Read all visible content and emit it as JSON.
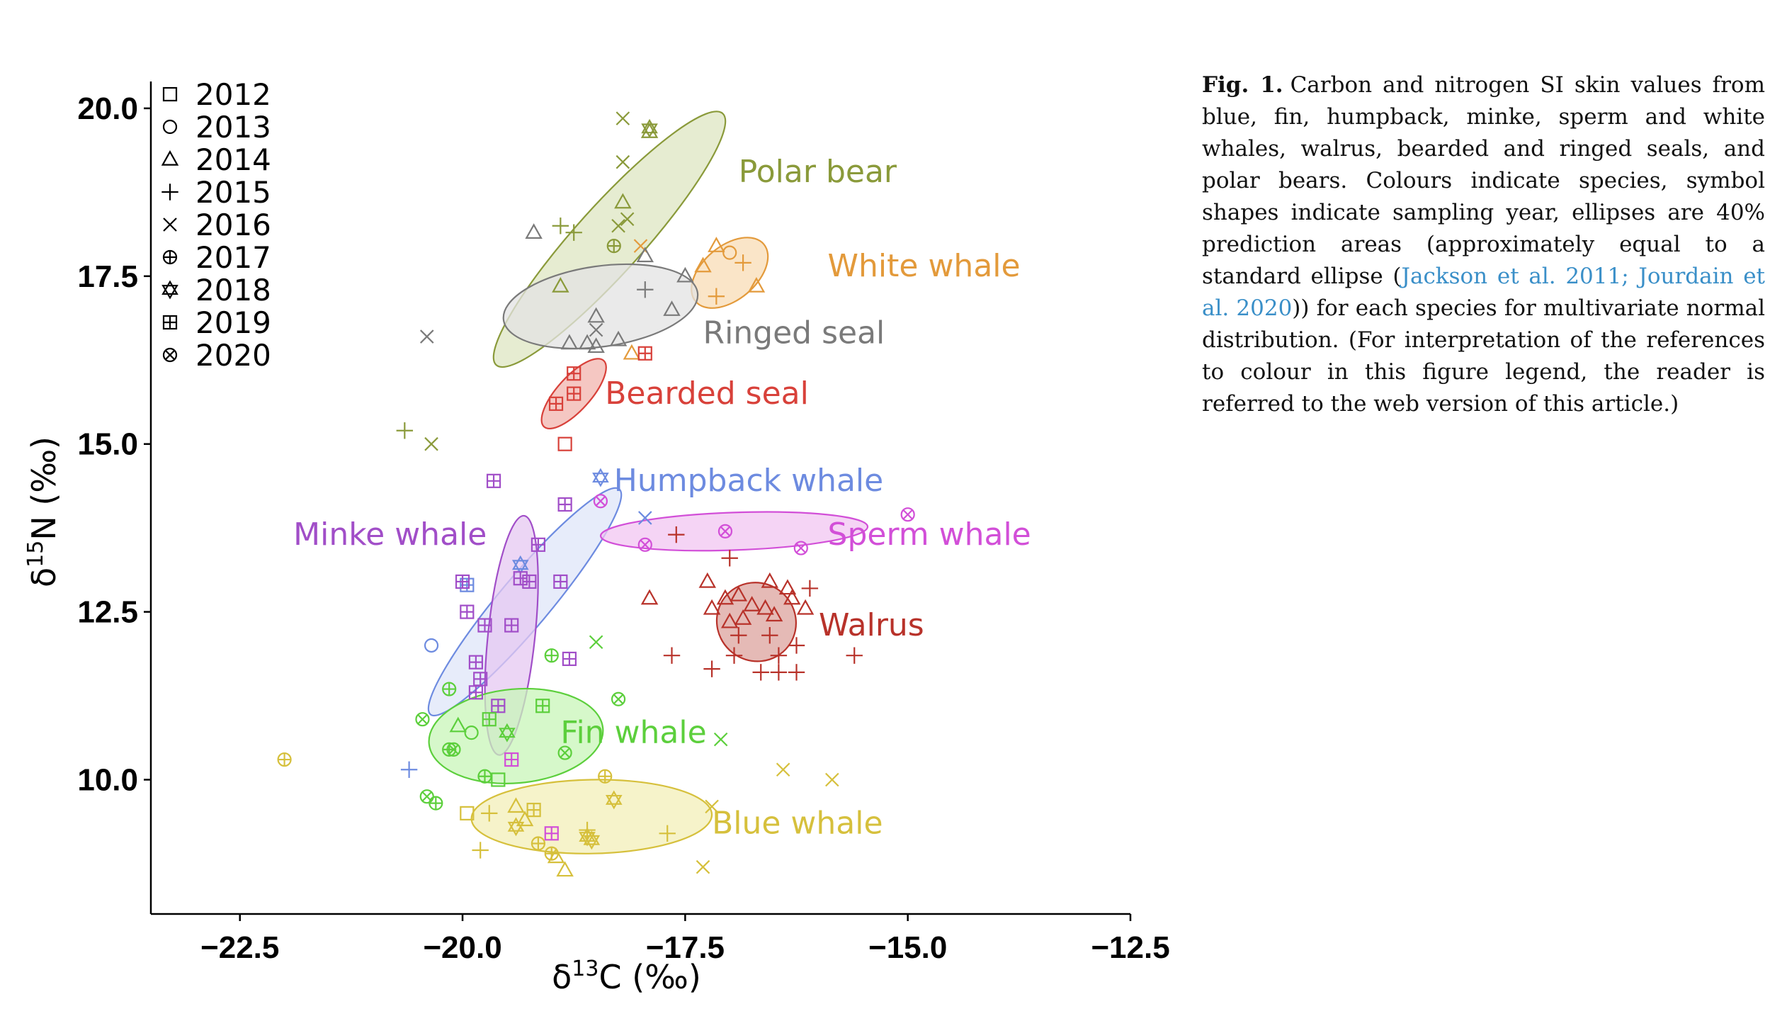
{
  "chart_data": {
    "type": "scatter",
    "xlabel": "δ13C (‰)",
    "ylabel": "δ15N (‰)",
    "xlim": [
      -23.5,
      -12.5
    ],
    "ylim": [
      8.0,
      20.4
    ],
    "xticks": [
      -22.5,
      -20.0,
      -17.5,
      -15.0,
      -12.5
    ],
    "xtick_labels": [
      "−22.5",
      "−20.0",
      "−17.5",
      "−15.0",
      "−12.5"
    ],
    "yticks": [
      10.0,
      12.5,
      15.0,
      17.5,
      20.0
    ],
    "ytick_labels": [
      "10.0",
      "12.5",
      "15.0",
      "17.5",
      "20.0"
    ],
    "grid": false,
    "legend_position": "top-left",
    "legend": [
      {
        "year": "2012",
        "marker": "square"
      },
      {
        "year": "2013",
        "marker": "circle"
      },
      {
        "year": "2014",
        "marker": "triangle"
      },
      {
        "year": "2015",
        "marker": "plus"
      },
      {
        "year": "2016",
        "marker": "cross"
      },
      {
        "year": "2017",
        "marker": "circle-plus"
      },
      {
        "year": "2018",
        "marker": "star-of-david"
      },
      {
        "year": "2019",
        "marker": "square-plus"
      },
      {
        "year": "2020",
        "marker": "circle-cross"
      }
    ],
    "series": [
      {
        "name": "Polar bear",
        "color": "#8a9a3a",
        "fill": "#dde6c2",
        "ellipse": {
          "cx": -18.35,
          "cy": 18.05,
          "rx": 1.9,
          "ry": 0.5,
          "angle_deg": 48
        },
        "label_pos": [
          -16.9,
          18.9
        ],
        "points": [
          {
            "x": -18.2,
            "y": 19.85,
            "m": "2016"
          },
          {
            "x": -17.9,
            "y": 19.7,
            "m": "2018"
          },
          {
            "x": -17.9,
            "y": 19.65,
            "m": "2014"
          },
          {
            "x": -18.2,
            "y": 19.2,
            "m": "2016"
          },
          {
            "x": -18.2,
            "y": 18.6,
            "m": "2014"
          },
          {
            "x": -18.15,
            "y": 18.35,
            "m": "2016"
          },
          {
            "x": -18.25,
            "y": 18.25,
            "m": "2016"
          },
          {
            "x": -18.9,
            "y": 18.25,
            "m": "2015"
          },
          {
            "x": -18.75,
            "y": 18.15,
            "m": "2015"
          },
          {
            "x": -18.3,
            "y": 17.95,
            "m": "2017"
          },
          {
            "x": -18.9,
            "y": 17.35,
            "m": "2014"
          },
          {
            "x": -20.65,
            "y": 15.2,
            "m": "2015"
          },
          {
            "x": -20.35,
            "y": 15.0,
            "m": "2016"
          }
        ]
      },
      {
        "name": "White whale",
        "color": "#e39a3b",
        "fill": "#f8dcb6",
        "ellipse": {
          "cx": -17.0,
          "cy": 17.55,
          "rx": 0.5,
          "ry": 0.4,
          "angle_deg": 40
        },
        "label_pos": [
          -15.9,
          17.5
        ],
        "points": [
          {
            "x": -17.15,
            "y": 17.95,
            "m": "2014"
          },
          {
            "x": -17.0,
            "y": 17.85,
            "m": "2013"
          },
          {
            "x": -17.3,
            "y": 17.65,
            "m": "2014"
          },
          {
            "x": -16.85,
            "y": 17.7,
            "m": "2015"
          },
          {
            "x": -16.7,
            "y": 17.35,
            "m": "2014"
          },
          {
            "x": -17.15,
            "y": 17.2,
            "m": "2015"
          },
          {
            "x": -18.0,
            "y": 17.95,
            "m": "2016"
          },
          {
            "x": -18.1,
            "y": 16.35,
            "m": "2014"
          }
        ]
      },
      {
        "name": "Ringed seal",
        "color": "#7a7a7a",
        "fill": "#e3e3e3",
        "ellipse": {
          "cx": -18.45,
          "cy": 17.05,
          "rx": 1.1,
          "ry": 0.6,
          "angle_deg": 8
        },
        "label_pos": [
          -17.3,
          16.5
        ],
        "points": [
          {
            "x": -19.2,
            "y": 18.15,
            "m": "2014"
          },
          {
            "x": -17.95,
            "y": 17.8,
            "m": "2014"
          },
          {
            "x": -17.5,
            "y": 17.5,
            "m": "2014"
          },
          {
            "x": -17.95,
            "y": 17.3,
            "m": "2015"
          },
          {
            "x": -17.65,
            "y": 17.0,
            "m": "2014"
          },
          {
            "x": -18.5,
            "y": 16.9,
            "m": "2014"
          },
          {
            "x": -18.5,
            "y": 16.7,
            "m": "2016"
          },
          {
            "x": -18.6,
            "y": 16.5,
            "m": "2014"
          },
          {
            "x": -18.8,
            "y": 16.5,
            "m": "2014"
          },
          {
            "x": -18.25,
            "y": 16.55,
            "m": "2014"
          },
          {
            "x": -18.5,
            "y": 16.45,
            "m": "2014"
          },
          {
            "x": -20.4,
            "y": 16.6,
            "m": "2016"
          }
        ]
      },
      {
        "name": "Bearded seal",
        "color": "#d8413a",
        "fill": "#f2b4ad",
        "ellipse": {
          "cx": -18.75,
          "cy": 15.75,
          "rx": 0.5,
          "ry": 0.25,
          "angle_deg": 48
        },
        "label_pos": [
          -18.4,
          15.6
        ],
        "points": [
          {
            "x": -17.95,
            "y": 16.35,
            "m": "2019"
          },
          {
            "x": -18.75,
            "y": 16.05,
            "m": "2019"
          },
          {
            "x": -18.75,
            "y": 15.75,
            "m": "2019"
          },
          {
            "x": -18.95,
            "y": 15.6,
            "m": "2019"
          },
          {
            "x": -18.85,
            "y": 15.0,
            "m": "2012"
          }
        ]
      },
      {
        "name": "Humpback whale",
        "color": "#6d8be0",
        "fill": "#dfe6f8",
        "ellipse": {
          "cx": -19.3,
          "cy": 12.65,
          "rx": 1.65,
          "ry": 0.38,
          "angle_deg": 50
        },
        "label_pos": [
          -18.3,
          14.3
        ],
        "points": [
          {
            "x": -18.45,
            "y": 14.5,
            "m": "2018"
          },
          {
            "x": -19.35,
            "y": 13.2,
            "m": "2018"
          },
          {
            "x": -20.35,
            "y": 12.0,
            "m": "2013"
          },
          {
            "x": -17.95,
            "y": 13.9,
            "m": "2016"
          },
          {
            "x": -20.6,
            "y": 10.15,
            "m": "2015"
          },
          {
            "x": -19.95,
            "y": 12.9,
            "m": "2019"
          }
        ]
      },
      {
        "name": "Sperm whale",
        "color": "#d24fd8",
        "fill": "#f1c6f2",
        "ellipse": {
          "cx": -16.95,
          "cy": 13.7,
          "rx": 1.5,
          "ry": 0.28,
          "angle_deg": 2
        },
        "label_pos": [
          -15.9,
          13.5
        ],
        "points": [
          {
            "x": -18.45,
            "y": 14.15,
            "m": "2020"
          },
          {
            "x": -15.0,
            "y": 13.95,
            "m": "2020"
          },
          {
            "x": -17.05,
            "y": 13.7,
            "m": "2020"
          },
          {
            "x": -17.95,
            "y": 13.5,
            "m": "2020"
          },
          {
            "x": -16.2,
            "y": 13.45,
            "m": "2020"
          },
          {
            "x": -19.45,
            "y": 10.3,
            "m": "2019"
          },
          {
            "x": -19.0,
            "y": 9.2,
            "m": "2019"
          }
        ]
      },
      {
        "name": "Minke whale",
        "color": "#a14ec8",
        "fill": "#e6c8f2",
        "ellipse": {
          "cx": -19.45,
          "cy": 12.15,
          "rx": 1.35,
          "ry": 0.35,
          "angle_deg": 84
        },
        "label_pos": [
          -21.9,
          13.5
        ],
        "points": [
          {
            "x": -19.65,
            "y": 14.45,
            "m": "2019"
          },
          {
            "x": -18.85,
            "y": 14.1,
            "m": "2019"
          },
          {
            "x": -19.15,
            "y": 13.5,
            "m": "2019"
          },
          {
            "x": -19.35,
            "y": 13.0,
            "m": "2019"
          },
          {
            "x": -19.25,
            "y": 12.95,
            "m": "2019"
          },
          {
            "x": -18.9,
            "y": 12.95,
            "m": "2019"
          },
          {
            "x": -20.0,
            "y": 12.95,
            "m": "2019"
          },
          {
            "x": -19.95,
            "y": 12.5,
            "m": "2019"
          },
          {
            "x": -19.75,
            "y": 12.3,
            "m": "2019"
          },
          {
            "x": -19.45,
            "y": 12.3,
            "m": "2019"
          },
          {
            "x": -18.8,
            "y": 11.8,
            "m": "2019"
          },
          {
            "x": -19.85,
            "y": 11.75,
            "m": "2019"
          },
          {
            "x": -19.8,
            "y": 11.5,
            "m": "2019"
          },
          {
            "x": -19.85,
            "y": 11.3,
            "m": "2019"
          },
          {
            "x": -19.6,
            "y": 11.1,
            "m": "2019"
          }
        ]
      },
      {
        "name": "Walrus",
        "color": "#b8322a",
        "fill": "#dca39e",
        "ellipse": {
          "cx": -16.7,
          "cy": 12.35,
          "rx": 0.45,
          "ry": 0.58,
          "angle_deg": -38
        },
        "label_pos": [
          -16.0,
          12.15
        ],
        "points": [
          {
            "x": -17.6,
            "y": 13.65,
            "m": "2015"
          },
          {
            "x": -17.0,
            "y": 13.3,
            "m": "2015"
          },
          {
            "x": -17.25,
            "y": 12.95,
            "m": "2014"
          },
          {
            "x": -16.55,
            "y": 12.95,
            "m": "2014"
          },
          {
            "x": -16.35,
            "y": 12.85,
            "m": "2014"
          },
          {
            "x": -16.1,
            "y": 12.85,
            "m": "2015"
          },
          {
            "x": -16.9,
            "y": 12.75,
            "m": "2014"
          },
          {
            "x": -17.05,
            "y": 12.7,
            "m": "2014"
          },
          {
            "x": -16.75,
            "y": 12.6,
            "m": "2014"
          },
          {
            "x": -17.2,
            "y": 12.55,
            "m": "2014"
          },
          {
            "x": -16.6,
            "y": 12.55,
            "m": "2014"
          },
          {
            "x": -16.3,
            "y": 12.7,
            "m": "2014"
          },
          {
            "x": -16.15,
            "y": 12.55,
            "m": "2014"
          },
          {
            "x": -16.5,
            "y": 12.45,
            "m": "2014"
          },
          {
            "x": -16.85,
            "y": 12.4,
            "m": "2014"
          },
          {
            "x": -17.0,
            "y": 12.35,
            "m": "2014"
          },
          {
            "x": -17.9,
            "y": 12.7,
            "m": "2014"
          },
          {
            "x": -16.9,
            "y": 12.15,
            "m": "2015"
          },
          {
            "x": -16.55,
            "y": 12.15,
            "m": "2015"
          },
          {
            "x": -16.25,
            "y": 12.0,
            "m": "2015"
          },
          {
            "x": -17.65,
            "y": 11.85,
            "m": "2015"
          },
          {
            "x": -16.95,
            "y": 11.85,
            "m": "2015"
          },
          {
            "x": -16.45,
            "y": 11.85,
            "m": "2015"
          },
          {
            "x": -15.6,
            "y": 11.85,
            "m": "2015"
          },
          {
            "x": -17.2,
            "y": 11.65,
            "m": "2015"
          },
          {
            "x": -16.65,
            "y": 11.6,
            "m": "2015"
          },
          {
            "x": -16.45,
            "y": 11.6,
            "m": "2015"
          },
          {
            "x": -16.25,
            "y": 11.6,
            "m": "2015"
          }
        ]
      },
      {
        "name": "Fin whale",
        "color": "#5ccf3c",
        "fill": "#c8f5b8",
        "ellipse": {
          "cx": -19.4,
          "cy": 10.65,
          "rx": 0.98,
          "ry": 0.7,
          "angle_deg": 5
        },
        "label_pos": [
          -18.9,
          10.55
        ],
        "points": [
          {
            "x": -18.5,
            "y": 12.05,
            "m": "2016"
          },
          {
            "x": -19.0,
            "y": 11.85,
            "m": "2017"
          },
          {
            "x": -20.15,
            "y": 11.35,
            "m": "2017"
          },
          {
            "x": -18.25,
            "y": 11.2,
            "m": "2020"
          },
          {
            "x": -19.1,
            "y": 11.1,
            "m": "2019"
          },
          {
            "x": -20.45,
            "y": 10.9,
            "m": "2020"
          },
          {
            "x": -19.7,
            "y": 10.9,
            "m": "2019"
          },
          {
            "x": -20.05,
            "y": 10.8,
            "m": "2014"
          },
          {
            "x": -19.9,
            "y": 10.7,
            "m": "2013"
          },
          {
            "x": -19.5,
            "y": 10.7,
            "m": "2018"
          },
          {
            "x": -17.1,
            "y": 10.6,
            "m": "2016"
          },
          {
            "x": -20.15,
            "y": 10.45,
            "m": "2017"
          },
          {
            "x": -20.1,
            "y": 10.45,
            "m": "2020"
          },
          {
            "x": -18.85,
            "y": 10.4,
            "m": "2020"
          },
          {
            "x": -19.75,
            "y": 10.05,
            "m": "2017"
          },
          {
            "x": -19.6,
            "y": 10.0,
            "m": "2012"
          },
          {
            "x": -20.4,
            "y": 9.75,
            "m": "2020"
          },
          {
            "x": -20.3,
            "y": 9.65,
            "m": "2017"
          }
        ]
      },
      {
        "name": "Blue whale",
        "color": "#d6c03c",
        "fill": "#f3efb8",
        "ellipse": {
          "cx": -18.55,
          "cy": 9.45,
          "rx": 1.35,
          "ry": 0.55,
          "angle_deg": 1
        },
        "label_pos": [
          -17.2,
          9.2
        ],
        "points": [
          {
            "x": -16.4,
            "y": 10.15,
            "m": "2016"
          },
          {
            "x": -15.85,
            "y": 10.0,
            "m": "2016"
          },
          {
            "x": -18.4,
            "y": 10.05,
            "m": "2017"
          },
          {
            "x": -22.0,
            "y": 10.3,
            "m": "2017"
          },
          {
            "x": -18.3,
            "y": 9.7,
            "m": "2018"
          },
          {
            "x": -17.2,
            "y": 9.6,
            "m": "2016"
          },
          {
            "x": -19.4,
            "y": 9.6,
            "m": "2014"
          },
          {
            "x": -19.2,
            "y": 9.55,
            "m": "2019"
          },
          {
            "x": -19.95,
            "y": 9.5,
            "m": "2012"
          },
          {
            "x": -19.7,
            "y": 9.5,
            "m": "2015"
          },
          {
            "x": -19.3,
            "y": 9.4,
            "m": "2014"
          },
          {
            "x": -19.4,
            "y": 9.3,
            "m": "2018"
          },
          {
            "x": -18.6,
            "y": 9.25,
            "m": "2015"
          },
          {
            "x": -17.7,
            "y": 9.2,
            "m": "2015"
          },
          {
            "x": -18.6,
            "y": 9.15,
            "m": "2018"
          },
          {
            "x": -18.55,
            "y": 9.1,
            "m": "2018"
          },
          {
            "x": -19.15,
            "y": 9.05,
            "m": "2017"
          },
          {
            "x": -19.8,
            "y": 8.95,
            "m": "2015"
          },
          {
            "x": -19.0,
            "y": 8.9,
            "m": "2017"
          },
          {
            "x": -18.95,
            "y": 8.85,
            "m": "2014"
          },
          {
            "x": -18.85,
            "y": 8.65,
            "m": "2014"
          },
          {
            "x": -17.3,
            "y": 8.7,
            "m": "2016"
          }
        ]
      }
    ]
  },
  "caption": {
    "label": "Fig. 1.",
    "text_before": "Carbon and nitrogen SI skin values from blue, fin, humpback, minke, sperm and white whales, walrus, bearded and ringed seals, and polar bears. Colours indicate species, symbol shapes indicate sampling year, ellipses are 40% prediction areas (approximately equal to a standard ellipse (",
    "ref_text": "Jackson et al. 2011; Jourdain et al. 2020",
    "text_after": ")) for each species for multivariate normal distribution. (For interpretation of the references to colour in this figure legend, the reader is referred to the web version of this article.)"
  }
}
